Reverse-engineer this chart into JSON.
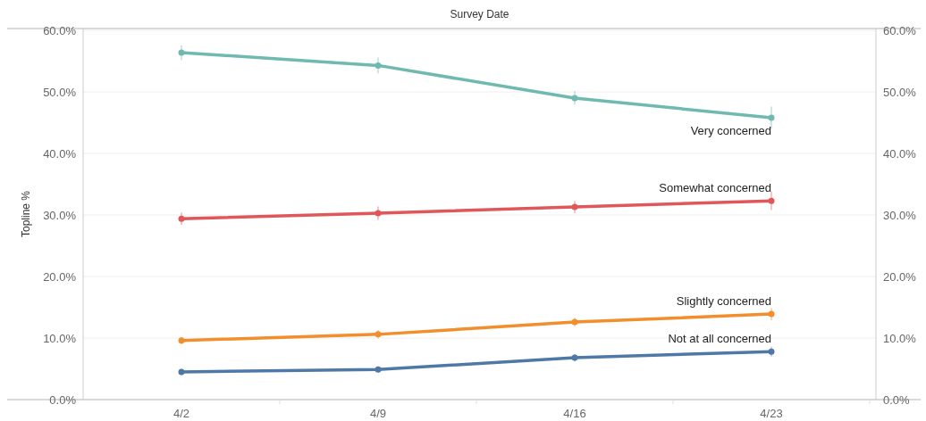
{
  "chart_data": {
    "type": "line",
    "xlabel": "Survey Date",
    "ylabel": "Topline %",
    "categories": [
      "4/2",
      "4/9",
      "4/16",
      "4/23"
    ],
    "series": [
      {
        "name": "Very concerned",
        "color": "#6fb9b0",
        "values": [
          56.4,
          54.3,
          49.0,
          45.8
        ],
        "errors": [
          1.2,
          1.3,
          1.1,
          1.8
        ]
      },
      {
        "name": "Somewhat concerned",
        "color": "#e05759",
        "values": [
          29.4,
          30.3,
          31.3,
          32.3
        ],
        "errors": [
          1.0,
          1.1,
          1.0,
          1.5
        ]
      },
      {
        "name": "Slightly concerned",
        "color": "#f28e2b",
        "values": [
          9.6,
          10.6,
          12.6,
          13.9
        ],
        "errors": [
          0.6,
          0.7,
          0.7,
          1.0
        ]
      },
      {
        "name": "Not at all concerned",
        "color": "#4e79a7",
        "values": [
          4.5,
          4.9,
          6.8,
          7.8
        ],
        "errors": [
          0.5,
          0.5,
          0.6,
          0.8
        ]
      }
    ],
    "ylim": [
      0,
      60.3
    ],
    "yticks": [
      {
        "value": 0,
        "label": "0.0%"
      },
      {
        "value": 10,
        "label": "10.0%"
      },
      {
        "value": 20,
        "label": "20.0%"
      },
      {
        "value": 30,
        "label": "30.0%"
      },
      {
        "value": 40,
        "label": "40.0%"
      },
      {
        "value": 50,
        "label": "50.0%"
      },
      {
        "value": 60,
        "label": "60.0%"
      }
    ],
    "y2lim": [
      0,
      60.3
    ],
    "y2ticks": [
      {
        "value": 0,
        "label": "0.0%"
      },
      {
        "value": 10,
        "label": "10.0%"
      },
      {
        "value": 20,
        "label": "20.0%"
      },
      {
        "value": 30,
        "label": "30.0%"
      },
      {
        "value": 40,
        "label": "40.0%"
      },
      {
        "value": 50,
        "label": "50.0%"
      },
      {
        "value": 60,
        "label": "60.0%"
      }
    ],
    "grid": "y",
    "marker": "circle",
    "line_style": "solid"
  }
}
